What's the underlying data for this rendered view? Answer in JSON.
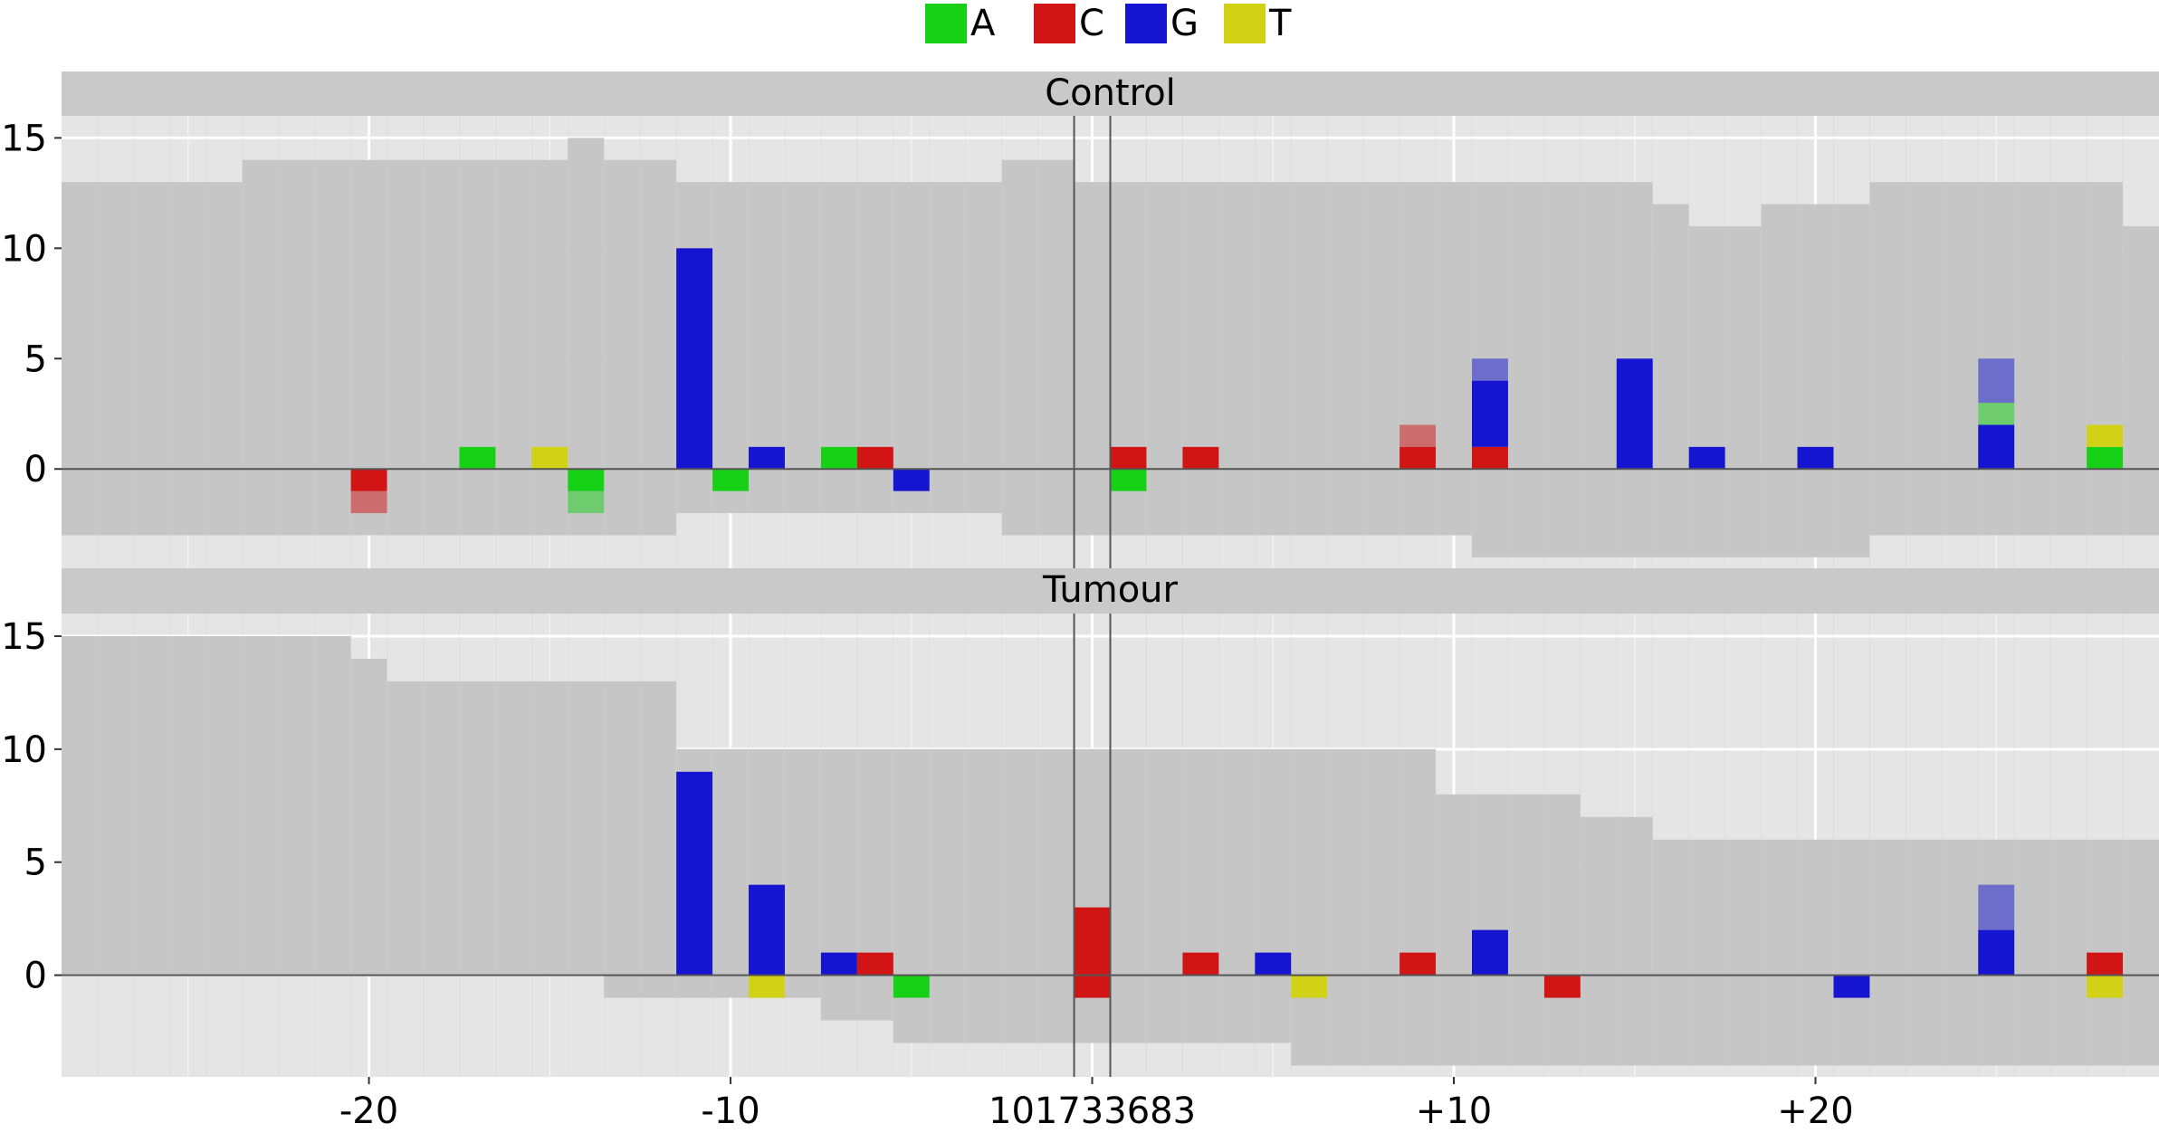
{
  "legend": {
    "items": [
      {
        "label": "A",
        "color": "#16d116"
      },
      {
        "label": "C",
        "color": "#d11414"
      },
      {
        "label": "G",
        "color": "#1414d1"
      },
      {
        "label": "T",
        "color": "#d1d116"
      }
    ]
  },
  "chart_data": {
    "type": "bar",
    "x_range": [
      -28.5,
      29.5
    ],
    "x_ticks": [
      {
        "pos": -20,
        "label": "-20"
      },
      {
        "pos": -10,
        "label": "-10"
      },
      {
        "pos": 0,
        "label": "101733683"
      },
      {
        "pos": 10,
        "label": "+10"
      },
      {
        "pos": 20,
        "label": "+20"
      },
      {
        "pos": 30,
        "label": ""
      }
    ],
    "y_ticks": [
      0,
      5,
      10,
      15
    ],
    "ylim": [
      -4.5,
      16
    ],
    "reference_lines": [
      -0.5,
      0.5
    ],
    "colors": {
      "A": "#16d116",
      "C": "#d11414",
      "G": "#1414d1",
      "T": "#d1d116"
    },
    "panels": [
      {
        "title": "Control",
        "depth_top": [
          {
            "from": -28.5,
            "to": -23.5,
            "value": 13
          },
          {
            "from": -23.5,
            "to": -14.5,
            "value": 14
          },
          {
            "from": -14.5,
            "to": -13.5,
            "value": 15
          },
          {
            "from": -13.5,
            "to": -11.5,
            "value": 14
          },
          {
            "from": -11.5,
            "to": -2.5,
            "value": 13
          },
          {
            "from": -2.5,
            "to": -0.5,
            "value": 14
          },
          {
            "from": -0.5,
            "to": 15.5,
            "value": 13
          },
          {
            "from": 15.5,
            "to": 16.5,
            "value": 12
          },
          {
            "from": 16.5,
            "to": 18.5,
            "value": 11
          },
          {
            "from": 18.5,
            "to": 21.5,
            "value": 12
          },
          {
            "from": 21.5,
            "to": 28.5,
            "value": 13
          },
          {
            "from": 28.5,
            "to": 29.5,
            "value": 11
          }
        ],
        "depth_bottom": [
          {
            "from": -28.5,
            "to": -11.5,
            "value": -3
          },
          {
            "from": -11.5,
            "to": -2.5,
            "value": -2
          },
          {
            "from": -2.5,
            "to": 10.5,
            "value": -3
          },
          {
            "from": 10.5,
            "to": 21.5,
            "value": -4
          },
          {
            "from": 21.5,
            "to": 29.5,
            "value": -3
          }
        ],
        "bars": [
          {
            "pos": -20,
            "base": "C",
            "dir": "down",
            "solid": 1,
            "faded": 1
          },
          {
            "pos": -17,
            "base": "A",
            "dir": "up",
            "solid": 1,
            "faded": 0
          },
          {
            "pos": -15,
            "base": "T",
            "dir": "up",
            "solid": 1,
            "faded": 0
          },
          {
            "pos": -14,
            "base": "A",
            "dir": "down",
            "solid": 1,
            "faded": 1
          },
          {
            "pos": -11,
            "base": "G",
            "dir": "up",
            "solid": 10,
            "faded": 0
          },
          {
            "pos": -10,
            "base": "A",
            "dir": "down",
            "solid": 1,
            "faded": 0
          },
          {
            "pos": -9,
            "base": "G",
            "dir": "up",
            "solid": 1,
            "faded": 0
          },
          {
            "pos": -7,
            "base": "A",
            "dir": "up",
            "solid": 1,
            "faded": 0
          },
          {
            "pos": -6,
            "base": "C",
            "dir": "up",
            "solid": 1,
            "faded": 0
          },
          {
            "pos": -5,
            "base": "G",
            "dir": "down",
            "solid": 1,
            "faded": 0
          },
          {
            "pos": 1,
            "base": "C",
            "dir": "up",
            "solid": 1,
            "faded": 0
          },
          {
            "pos": 1,
            "base": "A",
            "dir": "down",
            "solid": 1,
            "faded": 0
          },
          {
            "pos": 3,
            "base": "C",
            "dir": "up",
            "solid": 1,
            "faded": 0
          },
          {
            "pos": 9,
            "base": "C",
            "dir": "up",
            "solid": 1,
            "faded": 1
          },
          {
            "pos": 11,
            "stack": [
              {
                "base": "C",
                "solid": 1,
                "faded": 0
              },
              {
                "base": "G",
                "solid": 3,
                "faded": 1
              }
            ]
          },
          {
            "pos": 15,
            "base": "G",
            "dir": "up",
            "solid": 5,
            "faded": 0
          },
          {
            "pos": 17,
            "base": "G",
            "dir": "up",
            "solid": 1,
            "faded": 0
          },
          {
            "pos": 20,
            "base": "G",
            "dir": "up",
            "solid": 1,
            "faded": 0
          },
          {
            "pos": 25,
            "stack": [
              {
                "base": "G",
                "solid": 2,
                "faded": 0
              },
              {
                "base": "A",
                "solid": 0,
                "faded": 1
              },
              {
                "base": "G",
                "solid": 0,
                "faded": 2
              }
            ]
          },
          {
            "pos": 28,
            "stack": [
              {
                "base": "A",
                "solid": 1,
                "faded": 0
              },
              {
                "base": "T",
                "solid": 1,
                "faded": 0
              }
            ]
          }
        ]
      },
      {
        "title": "Tumour",
        "depth_top": [
          {
            "from": -28.5,
            "to": -20.5,
            "value": 15
          },
          {
            "from": -20.5,
            "to": -19.5,
            "value": 14
          },
          {
            "from": -19.5,
            "to": -11.5,
            "value": 13
          },
          {
            "from": -11.5,
            "to": 9.5,
            "value": 10
          },
          {
            "from": 9.5,
            "to": 13.5,
            "value": 8
          },
          {
            "from": 13.5,
            "to": 15.5,
            "value": 7
          },
          {
            "from": 15.5,
            "to": 29.5,
            "value": 6
          }
        ],
        "depth_bottom": [
          {
            "from": -28.5,
            "to": -13.5,
            "value": 0
          },
          {
            "from": -13.5,
            "to": -7.5,
            "value": -1
          },
          {
            "from": -7.5,
            "to": -5.5,
            "value": -2
          },
          {
            "from": -5.5,
            "to": 5.5,
            "value": -3
          },
          {
            "from": 5.5,
            "to": 29.5,
            "value": -4
          }
        ],
        "bars": [
          {
            "pos": -11,
            "base": "G",
            "dir": "up",
            "solid": 9,
            "faded": 0
          },
          {
            "pos": -9,
            "base": "G",
            "dir": "up",
            "solid": 4,
            "faded": 0
          },
          {
            "pos": -9,
            "base": "T",
            "dir": "down",
            "solid": 1,
            "faded": 0
          },
          {
            "pos": -7,
            "base": "G",
            "dir": "up",
            "solid": 1,
            "faded": 0
          },
          {
            "pos": -6,
            "base": "C",
            "dir": "up",
            "solid": 1,
            "faded": 0
          },
          {
            "pos": -5,
            "base": "A",
            "dir": "down",
            "solid": 1,
            "faded": 0
          },
          {
            "pos": 0,
            "base": "C",
            "dir": "up",
            "solid": 3,
            "faded": 0
          },
          {
            "pos": 0,
            "base": "C",
            "dir": "down",
            "solid": 1,
            "faded": 0
          },
          {
            "pos": 3,
            "base": "C",
            "dir": "up",
            "solid": 1,
            "faded": 0
          },
          {
            "pos": 5,
            "base": "G",
            "dir": "up",
            "solid": 1,
            "faded": 0
          },
          {
            "pos": 6,
            "base": "T",
            "dir": "down",
            "solid": 1,
            "faded": 0
          },
          {
            "pos": 9,
            "base": "C",
            "dir": "up",
            "solid": 1,
            "faded": 0
          },
          {
            "pos": 11,
            "base": "G",
            "dir": "up",
            "solid": 2,
            "faded": 0
          },
          {
            "pos": 13,
            "base": "C",
            "dir": "down",
            "solid": 1,
            "faded": 0
          },
          {
            "pos": 21,
            "base": "G",
            "dir": "down",
            "solid": 1,
            "faded": 0
          },
          {
            "pos": 25,
            "base": "G",
            "dir": "up",
            "solid": 2,
            "faded": 2
          },
          {
            "pos": 28,
            "base": "C",
            "dir": "up",
            "solid": 1,
            "faded": 0
          },
          {
            "pos": 28,
            "base": "T",
            "dir": "down",
            "solid": 1,
            "faded": 0
          }
        ]
      }
    ]
  }
}
